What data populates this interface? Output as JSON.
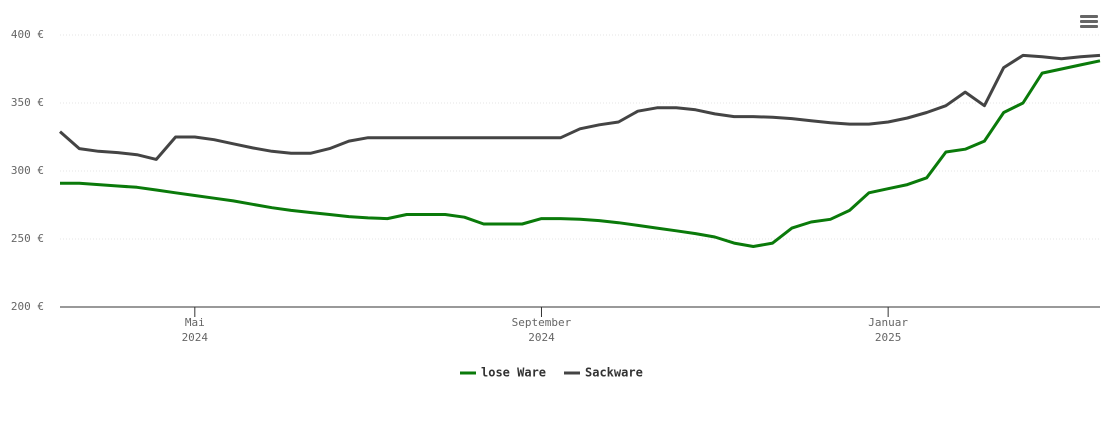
{
  "chart_data": {
    "type": "line",
    "categories": [
      null,
      null,
      null,
      null,
      null,
      null,
      null,
      "Mai 2024",
      null,
      null,
      null,
      null,
      null,
      null,
      null,
      null,
      null,
      null,
      null,
      null,
      null,
      null,
      null,
      null,
      null,
      "September 2024",
      null,
      null,
      null,
      null,
      null,
      null,
      null,
      null,
      null,
      null,
      null,
      null,
      null,
      null,
      null,
      null,
      null,
      "Januar 2025",
      null,
      null,
      null,
      null,
      null,
      null,
      null,
      null,
      null,
      null,
      null
    ],
    "series": [
      {
        "name": "lose Ware",
        "color": "#0a7a0a",
        "values": [
          291,
          291,
          290,
          289,
          288,
          286,
          284,
          282,
          280,
          278,
          275.5,
          273,
          271,
          269.5,
          268,
          266.5,
          265.5,
          265,
          268,
          268,
          268,
          266,
          261,
          261,
          261,
          265,
          265,
          264.5,
          263.5,
          262,
          260,
          258,
          256,
          254,
          251.5,
          247,
          244.5,
          247,
          258,
          262.5,
          264.5,
          271,
          284,
          287,
          290,
          295,
          314,
          316,
          322,
          343,
          350,
          372,
          375,
          378,
          381
        ]
      },
      {
        "name": "Sackware",
        "color": "#444444",
        "values": [
          329,
          316.5,
          314.5,
          313.5,
          312,
          308.5,
          325,
          325,
          323,
          320,
          317,
          314.5,
          313,
          313,
          316.5,
          322,
          324.5,
          324.5,
          324.5,
          324.5,
          324.5,
          324.5,
          324.5,
          324.5,
          324.5,
          324.5,
          324.5,
          331,
          334,
          336,
          344,
          346.5,
          346.5,
          345,
          342,
          340,
          340,
          339.5,
          338.5,
          337,
          335.5,
          334.5,
          334.5,
          336,
          339,
          343,
          348,
          358,
          348,
          376,
          385,
          384,
          382.5,
          384,
          385
        ]
      }
    ],
    "ylim": [
      200,
      400
    ],
    "yticks": [
      {
        "value": 200,
        "label": "200 €"
      },
      {
        "value": 250,
        "label": "250 €"
      },
      {
        "value": 300,
        "label": "300 €"
      },
      {
        "value": 350,
        "label": "350 €"
      },
      {
        "value": 400,
        "label": "400 €"
      }
    ],
    "grid": true,
    "legend": "bottom"
  }
}
